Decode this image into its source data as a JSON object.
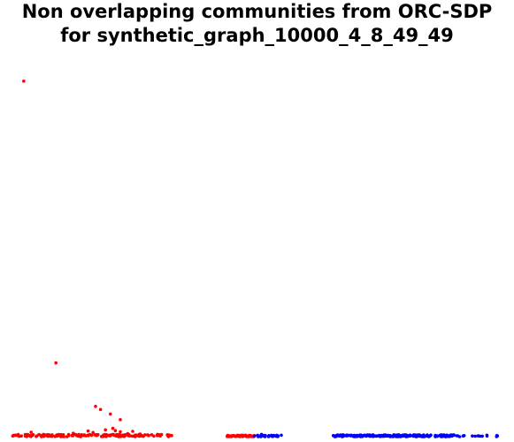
{
  "chart_data": {
    "type": "scatter",
    "title_line1": "Non overlapping communities from ORC-SDP",
    "title_line2": "for synthetic_graph_10000_4_8_49_49",
    "xlabel": "",
    "ylabel": "",
    "grid": false,
    "axes_visible": false,
    "xlim": [
      0,
      1000
    ],
    "ylim": [
      0,
      100
    ],
    "series": [
      {
        "color": "#ff0000",
        "points": [
          [
            30,
            94
          ],
          [
            95,
            19.5
          ],
          [
            205,
            6
          ],
          [
            175,
            8
          ],
          [
            185,
            7.2
          ],
          [
            225,
            4.5
          ],
          [
            45,
            1.2
          ],
          [
            70,
            0.6
          ],
          [
            130,
            0.9
          ],
          [
            160,
            1.5
          ],
          [
            170,
            1.1
          ],
          [
            195,
            1.8
          ],
          [
            210,
            2.2
          ],
          [
            215,
            1.6
          ],
          [
            225,
            1.3
          ],
          [
            240,
            0.8
          ],
          [
            250,
            1.4
          ],
          [
            265,
            0.7
          ],
          [
            280,
            0.5
          ],
          [
            300,
            0.6
          ],
          [
            320,
            0.5
          ]
        ],
        "clusters": [
          {
            "x_range": [
              5,
              330
            ],
            "y_range": [
              0,
              0.6
            ],
            "count": 170
          },
          {
            "x_range": [
              440,
              500
            ],
            "y_range": [
              0,
              0.4
            ],
            "count": 45
          }
        ]
      },
      {
        "color": "#0000ff",
        "points": [
          [
            510,
            0.6
          ],
          [
            550,
            0.4
          ],
          [
            655,
            0.3
          ],
          [
            675,
            0.5
          ],
          [
            985,
            0.3
          ],
          [
            965,
            0.4
          ]
        ],
        "clusters": [
          {
            "x_range": [
              495,
              545
            ],
            "y_range": [
              0,
              0.4
            ],
            "count": 30
          },
          {
            "x_range": [
              655,
              900
            ],
            "y_range": [
              0,
              0.5
            ],
            "count": 220
          },
          {
            "x_range": [
              900,
              990
            ],
            "y_range": [
              0,
              0.3
            ],
            "count": 15
          }
        ]
      }
    ]
  }
}
